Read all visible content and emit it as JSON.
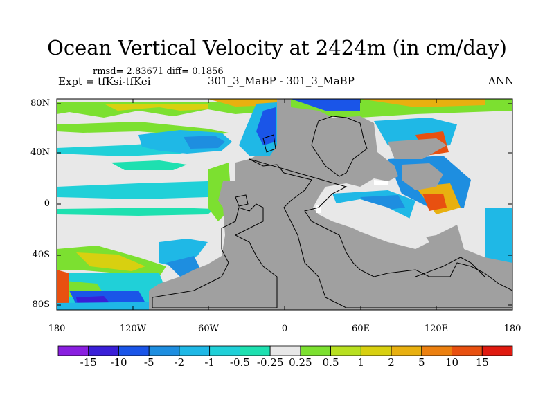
{
  "title": "Ocean Vertical Velocity at 2424m (in cm/day)",
  "stats": "rmsd= 2.83671  diff= 0.1856",
  "expt": "Expt = tfKsi-tfKei",
  "subtitle": "301_3_MaBP - 301_3_MaBP",
  "season": "ANN",
  "lat_labels": [
    "80N",
    "40N",
    "0",
    "40S",
    "80S"
  ],
  "lon_labels": [
    "180",
    "120W",
    "60W",
    "0",
    "60E",
    "120E",
    "180"
  ],
  "colorbar": {
    "labels": [
      "-15",
      "-10",
      "-5",
      "-2",
      "-1",
      "-0.5",
      "-0.25",
      "0.25",
      "0.5",
      "1",
      "2",
      "5",
      "10",
      "15"
    ],
    "colors": [
      "#8a1fe0",
      "#3a1fd8",
      "#1a55e8",
      "#1e8ee0",
      "#1fb8e6",
      "#20d0d8",
      "#1ee0b0",
      "#e8e8e8",
      "#7ce030",
      "#b8e020",
      "#d8d010",
      "#e8b010",
      "#ec8010",
      "#e85010",
      "#e01a10"
    ]
  },
  "colors": {
    "land": "#a0a0a0",
    "neutral": "#e8e8e8"
  }
}
